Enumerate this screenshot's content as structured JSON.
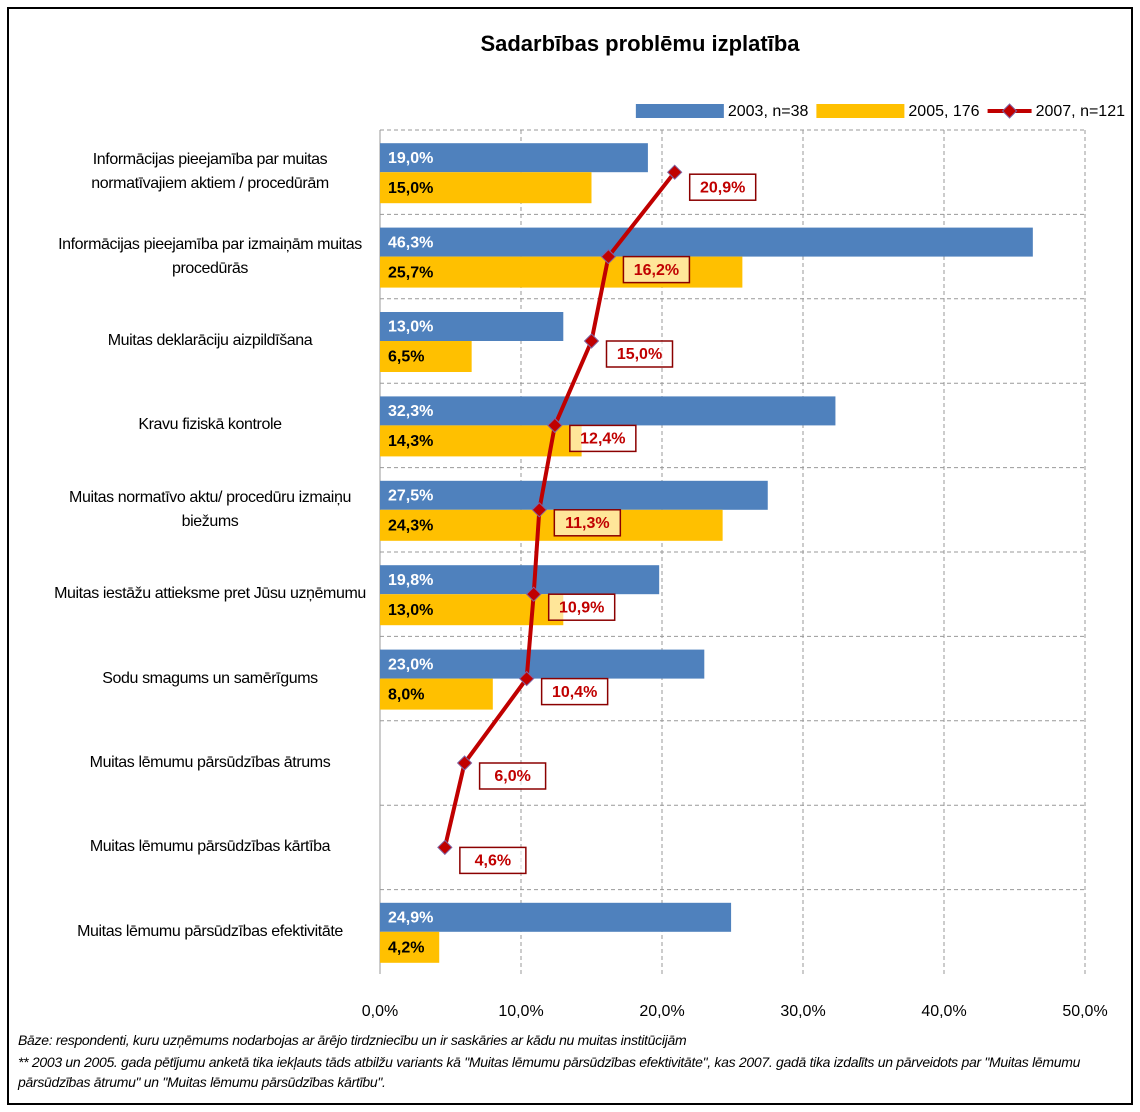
{
  "chart_data": {
    "type": "bar",
    "orientation": "horizontal",
    "title": "Sadarbības problēmu izplatība",
    "categories": [
      "Informācijas pieejamība par muitas normatīvajiem aktiem / procedūrām",
      "Informācijas pieejamība par izmaiņām muitas procedūrās",
      "Muitas deklarāciju aizpildīšana",
      "Kravu fiziskā kontrole",
      "Muitas normatīvo aktu/ procedūru izmaiņu biežums",
      "Muitas iestāžu attieksme pret Jūsu uzņēmumu",
      "Sodu smagums un samērīgums",
      "Muitas lēmumu pārsūdzības ātrums",
      "Muitas lēmumu pārsūdzības kārtība",
      "Muitas lēmumu pārsūdzības efektivitāte"
    ],
    "series": [
      {
        "name": "2003, n=38",
        "type": "bar",
        "color": "#4f81bd",
        "values": [
          19.0,
          46.3,
          13.0,
          32.3,
          27.5,
          19.8,
          23.0,
          null,
          null,
          24.9
        ],
        "value_labels": [
          "19,0%",
          "46,3%",
          "13,0%",
          "32,3%",
          "27,5%",
          "19,8%",
          "23,0%",
          null,
          null,
          "24,9%"
        ]
      },
      {
        "name": "2005, 176",
        "type": "bar",
        "color": "#ffc000",
        "values": [
          15.0,
          25.7,
          6.5,
          14.3,
          24.3,
          13.0,
          8.0,
          null,
          null,
          4.2
        ],
        "value_labels": [
          "15,0%",
          "25,7%",
          "6,5%",
          "14,3%",
          "24,3%",
          "13,0%",
          "8,0%",
          null,
          null,
          "4,2%"
        ]
      },
      {
        "name": "2007, n=121",
        "type": "line",
        "color": "#c00000",
        "values": [
          20.9,
          16.2,
          15.0,
          12.4,
          11.3,
          10.9,
          10.4,
          6.0,
          4.6,
          null
        ],
        "value_labels": [
          "20,9%",
          "16,2%",
          "15,0%",
          "12,4%",
          "11,3%",
          "10,9%",
          "10,4%",
          "6,0%",
          "4,6%",
          null
        ]
      }
    ],
    "xlim": [
      0,
      50
    ],
    "xticks": [
      {
        "value": 0,
        "label": "0,0%"
      },
      {
        "value": 10,
        "label": "10,0%"
      },
      {
        "value": 20,
        "label": "20,0%"
      },
      {
        "value": 30,
        "label": "30,0%"
      },
      {
        "value": 40,
        "label": "40,0%"
      },
      {
        "value": 50,
        "label": "50,0%"
      }
    ],
    "grid": true,
    "legend": "top-right",
    "notes": [
      "Bāze:  respondenti, kuru uzņēmums nodarbojas ar ārējo tirdzniecību un ir saskāries ar kādu nu muitas institūcijām",
      "** 2003 un 2005. gada pētījumu anketā tika  iekļauts tāds atbilžu variants kā \"Muitas lēmumu pārsūdzības efektivitāte\", kas 2007. gadā tika izdalīts un pārveidots par \"Muitas lēmumu pārsūdzības ātrumu\" un \"Muitas lēmumu pārsūdzības kārtību\"."
    ]
  }
}
